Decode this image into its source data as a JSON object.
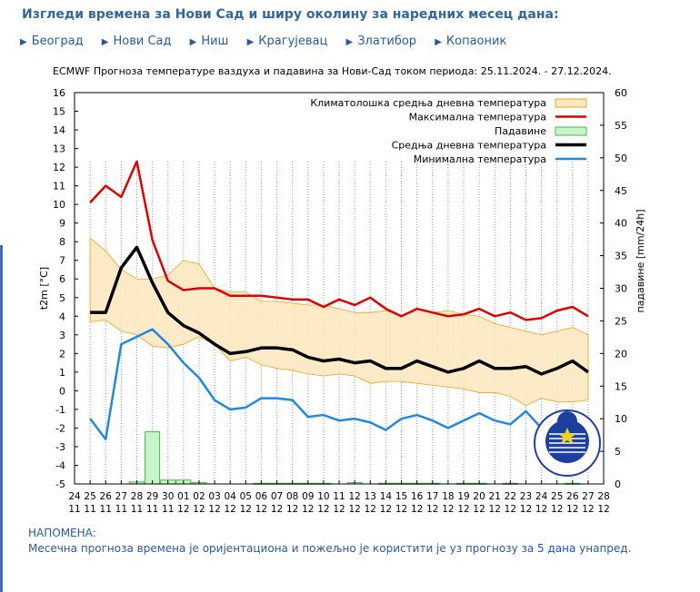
{
  "header": {
    "title": "Изгледи времена за Нови Сад и ширу околину за наредних месец дана:",
    "nav": [
      "Београд",
      "Нови Сад",
      "Ниш",
      "Крагујевац",
      "Златибор",
      "Копаоник"
    ]
  },
  "note": {
    "title": "НАПОМЕНА:",
    "text_before": "Месечна прогноза времена је оријентациона и пожељно је користити је уз прогнозу за ",
    "highlight": "5 дана",
    "text_after": " унапред."
  },
  "chart_data": {
    "type": "line",
    "title": "ECMWF Прогноза температуре ваздуха и падавина за Нови-Сад током периода: 25.11.2024. - 27.12.2024.",
    "ylabel": "t2m [°C]",
    "y2label": "падавине [mm/24h]",
    "ylim": [
      -5,
      16
    ],
    "y2lim": [
      0,
      60
    ],
    "grid": "vertical dotted",
    "legend_position": "top-right",
    "x_ticks_day": [
      "24",
      "25",
      "26",
      "27",
      "28",
      "29",
      "30",
      "01",
      "02",
      "03",
      "04",
      "05",
      "06",
      "07",
      "08",
      "09",
      "10",
      "11",
      "12",
      "13",
      "14",
      "15",
      "16",
      "17",
      "18",
      "19",
      "20",
      "21",
      "22",
      "23",
      "24",
      "25",
      "26",
      "27",
      "28"
    ],
    "x_ticks_month": [
      "11",
      "11",
      "11",
      "11",
      "11",
      "11",
      "11",
      "12",
      "12",
      "12",
      "12",
      "12",
      "12",
      "12",
      "12",
      "12",
      "12",
      "12",
      "12",
      "12",
      "12",
      "12",
      "12",
      "12",
      "12",
      "12",
      "12",
      "12",
      "12",
      "12",
      "12",
      "12",
      "12",
      "12",
      "12"
    ],
    "x": [
      "25.11",
      "26.11",
      "27.11",
      "28.11",
      "29.11",
      "30.11",
      "01.12",
      "02.12",
      "03.12",
      "04.12",
      "05.12",
      "06.12",
      "07.12",
      "08.12",
      "09.12",
      "10.12",
      "11.12",
      "12.12",
      "13.12",
      "14.12",
      "15.12",
      "16.12",
      "17.12",
      "18.12",
      "19.12",
      "20.12",
      "21.12",
      "22.12",
      "23.12",
      "24.12",
      "25.12",
      "26.12",
      "27.12"
    ],
    "series": [
      {
        "name": "Максимална температура",
        "color": "#dd0000",
        "values": [
          10.1,
          11.0,
          10.4,
          12.3,
          8.1,
          5.9,
          5.4,
          5.5,
          5.5,
          5.1,
          5.1,
          5.1,
          5.0,
          4.9,
          4.9,
          4.5,
          4.9,
          4.6,
          5.0,
          4.4,
          4.0,
          4.4,
          4.2,
          4.0,
          4.1,
          4.4,
          4.0,
          4.2,
          3.8,
          3.9,
          4.3,
          4.5,
          4.0
        ]
      },
      {
        "name": "Средња дневна температура",
        "color": "#000000",
        "values": [
          4.2,
          4.2,
          6.6,
          7.7,
          5.8,
          4.2,
          3.5,
          3.1,
          2.5,
          2.0,
          2.1,
          2.3,
          2.3,
          2.2,
          1.8,
          1.6,
          1.7,
          1.5,
          1.6,
          1.2,
          1.2,
          1.6,
          1.3,
          1.0,
          1.2,
          1.6,
          1.2,
          1.2,
          1.3,
          0.9,
          1.2,
          1.6,
          1.0
        ]
      },
      {
        "name": "Минимална температура",
        "color": "#2288dd",
        "values": [
          -1.5,
          -2.6,
          2.5,
          2.9,
          3.3,
          2.5,
          1.5,
          0.7,
          -0.5,
          -1.0,
          -0.9,
          -0.4,
          -0.4,
          -0.5,
          -1.4,
          -1.3,
          -1.6,
          -1.5,
          -1.7,
          -2.1,
          -1.5,
          -1.3,
          -1.6,
          -2.0,
          -1.6,
          -1.2,
          -1.6,
          -1.8,
          -1.1,
          -2.0,
          -1.5,
          -1.2,
          -1.5
        ]
      },
      {
        "name": "Климатолошка средња дневна температура",
        "color": "#f5a020",
        "fill": "#fde8c0",
        "upper": [
          8.2,
          7.5,
          6.5,
          6.0,
          6.0,
          6.2,
          7.0,
          6.8,
          5.5,
          5.3,
          5.3,
          4.8,
          4.8,
          4.7,
          4.6,
          4.6,
          4.4,
          4.2,
          4.2,
          4.3,
          4.0,
          4.4,
          4.2,
          4.3,
          4.1,
          4.0,
          3.6,
          3.4,
          3.2,
          3.0,
          3.2,
          3.4,
          3.0
        ],
        "lower": [
          3.7,
          3.8,
          3.2,
          3.0,
          2.4,
          2.3,
          2.5,
          2.9,
          2.5,
          1.6,
          1.8,
          1.4,
          1.2,
          1.1,
          0.9,
          0.8,
          0.9,
          0.8,
          0.4,
          0.5,
          0.5,
          0.4,
          0.3,
          0.2,
          0.1,
          -0.1,
          -0.1,
          -0.3,
          -0.8,
          -0.4,
          -0.6,
          -0.6,
          -0.5
        ]
      },
      {
        "name": "Падавине",
        "color": "#44bb44",
        "fill": "#c8f5c8",
        "axis": "y2",
        "values": [
          0,
          0,
          0,
          0.3,
          8,
          0.6,
          0.6,
          0.2,
          0,
          0,
          0,
          0.1,
          0.1,
          0.1,
          0.1,
          0.1,
          0,
          0.2,
          0,
          0.1,
          0.1,
          0.1,
          0.1,
          0,
          0.1,
          0.1,
          0,
          0.1,
          0,
          0,
          0,
          0.1,
          0
        ]
      }
    ],
    "legend": [
      {
        "label": "Климатолошка средња дневна температура",
        "kind": "box",
        "color": "#f5a020",
        "fill": "#fde8c0"
      },
      {
        "label": "Максимална температура",
        "kind": "line",
        "color": "#dd0000"
      },
      {
        "label": "Падавине",
        "kind": "box",
        "color": "#44bb44",
        "fill": "#c8f5c8"
      },
      {
        "label": "Средња дневна температура",
        "kind": "line",
        "color": "#000000"
      },
      {
        "label": "Минимална температура",
        "kind": "line",
        "color": "#2288dd"
      }
    ]
  }
}
